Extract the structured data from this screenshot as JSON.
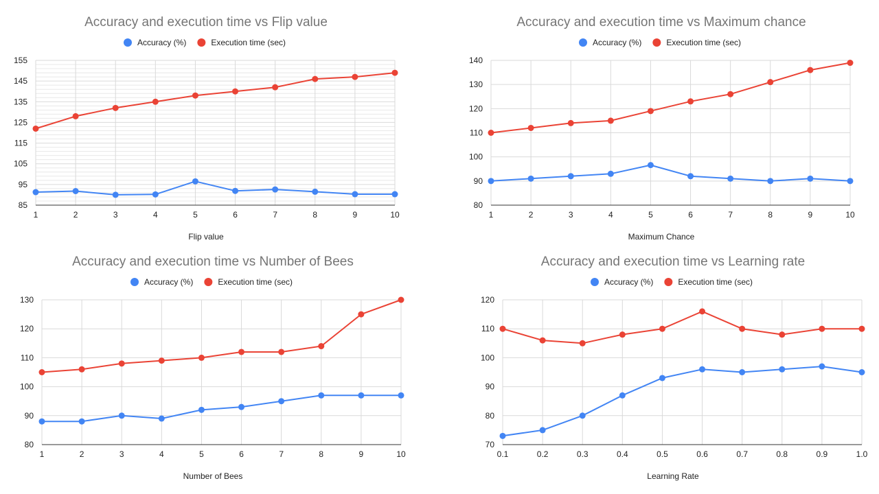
{
  "colors": {
    "accuracy": "#4285f4",
    "execution": "#ea4335",
    "grid": "#d9d9d9",
    "minor_grid": "#e8e8e8",
    "axis": "#333333"
  },
  "chart_data": [
    {
      "type": "line",
      "title": "Accuracy and execution time vs Flip value",
      "xlabel": "Flip value",
      "ylabel": "",
      "x": [
        1,
        2,
        3,
        4,
        5,
        6,
        7,
        8,
        9,
        10
      ],
      "x_tick_labels": [
        "1",
        "2",
        "3",
        "4",
        "5",
        "6",
        "7",
        "8",
        "9",
        "10"
      ],
      "ylim": [
        85,
        155
      ],
      "y_ticks": [
        85,
        95,
        105,
        115,
        125,
        135,
        145,
        155
      ],
      "minor_y_step": 2,
      "series": [
        {
          "name": "Accuracy (%)",
          "values": [
            91.3,
            91.8,
            90,
            90.2,
            96.5,
            91.9,
            92.6,
            91.5,
            90.3,
            90.3
          ]
        },
        {
          "name": "Execution time (sec)",
          "values": [
            122,
            128,
            132,
            135,
            138,
            140,
            142,
            146,
            147,
            149
          ]
        }
      ]
    },
    {
      "type": "line",
      "title": "Accuracy and execution time vs Maximum chance",
      "xlabel": "Maximum Chance",
      "ylabel": "",
      "x": [
        1,
        2,
        3,
        4,
        5,
        6,
        7,
        8,
        9,
        10
      ],
      "x_tick_labels": [
        "1",
        "2",
        "3",
        "4",
        "5",
        "6",
        "7",
        "8",
        "9",
        "10"
      ],
      "ylim": [
        80,
        140
      ],
      "y_ticks": [
        80,
        90,
        100,
        110,
        120,
        130,
        140
      ],
      "series": [
        {
          "name": "Accuracy (%)",
          "values": [
            90,
            91,
            92,
            93,
            96.6,
            92,
            91,
            90,
            91,
            90
          ]
        },
        {
          "name": "Execution time (sec)",
          "values": [
            110,
            112,
            114,
            115,
            119,
            123,
            126,
            131,
            136,
            139
          ]
        }
      ]
    },
    {
      "type": "line",
      "title": "Accuracy and execution time vs Number of Bees",
      "xlabel": "Number of Bees",
      "ylabel": "",
      "x": [
        1,
        2,
        3,
        4,
        5,
        6,
        7,
        8,
        9,
        10
      ],
      "x_tick_labels": [
        "1",
        "2",
        "3",
        "4",
        "5",
        "6",
        "7",
        "8",
        "9",
        "10"
      ],
      "ylim": [
        80,
        130
      ],
      "y_ticks": [
        80,
        90,
        100,
        110,
        120,
        130
      ],
      "series": [
        {
          "name": "Accuracy (%)",
          "values": [
            88,
            88,
            90,
            89,
            92,
            93,
            95,
            97,
            97,
            97
          ]
        },
        {
          "name": "Execution time (sec)",
          "values": [
            105,
            106,
            108,
            109,
            110,
            112,
            112,
            114,
            125,
            130
          ]
        }
      ]
    },
    {
      "type": "line",
      "title": "Accuracy and execution time vs Learning rate",
      "xlabel": "Learning Rate",
      "ylabel": "",
      "x": [
        0.1,
        0.2,
        0.3,
        0.4,
        0.5,
        0.6,
        0.7,
        0.8,
        0.9,
        1.0
      ],
      "x_tick_labels": [
        "0.1",
        "0.2",
        "0.3",
        "0.4",
        "0.5",
        "0.6",
        "0.7",
        "0.8",
        "0.9",
        "1.0"
      ],
      "ylim": [
        70,
        120
      ],
      "y_ticks": [
        70,
        80,
        90,
        100,
        110,
        120
      ],
      "series": [
        {
          "name": "Accuracy (%)",
          "values": [
            73,
            75,
            80,
            87,
            93,
            96,
            95,
            96,
            97,
            95
          ]
        },
        {
          "name": "Execution time (sec)",
          "values": [
            110,
            106,
            105,
            108,
            110,
            116,
            110,
            108,
            110,
            110
          ]
        }
      ]
    }
  ]
}
